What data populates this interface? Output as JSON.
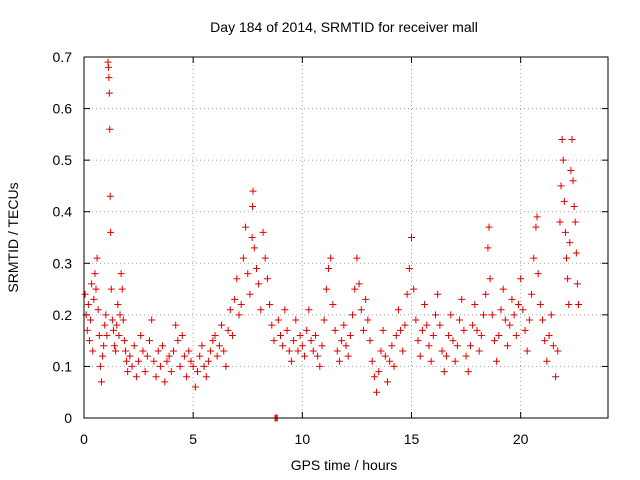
{
  "chart_data": {
    "type": "scatter",
    "title": "Day 184 of 2014, SRMTID for receiver mall",
    "xlabel": "GPS time / hours",
    "ylabel": "SRMTID / TECUs",
    "xlim": [
      0,
      24
    ],
    "ylim": [
      0,
      0.7
    ],
    "xticks": [
      0,
      5,
      10,
      15,
      20
    ],
    "xtick_labels": [
      "0",
      "5",
      "10",
      "15",
      "20"
    ],
    "yticks": [
      0,
      0.1,
      0.2,
      0.3,
      0.4,
      0.5,
      0.6,
      0.7
    ],
    "ytick_labels": [
      "0",
      "0.1",
      "0.2",
      "0.3",
      "0.4",
      "0.5",
      "0.6",
      "0.7"
    ],
    "grid": true,
    "marker": "+",
    "color": "#e00000",
    "series": [
      {
        "name": "SRMTID",
        "points": [
          [
            0.05,
            0.24
          ],
          [
            0.1,
            0.2
          ],
          [
            0.15,
            0.17
          ],
          [
            0.2,
            0.22
          ],
          [
            0.25,
            0.15
          ],
          [
            0.3,
            0.19
          ],
          [
            0.35,
            0.26
          ],
          [
            0.4,
            0.13
          ],
          [
            0.45,
            0.23
          ],
          [
            0.5,
            0.28
          ],
          [
            0.55,
            0.25
          ],
          [
            0.6,
            0.31
          ],
          [
            0.65,
            0.21
          ],
          [
            0.7,
            0.16
          ],
          [
            0.75,
            0.1
          ],
          [
            0.8,
            0.07
          ],
          [
            0.85,
            0.12
          ],
          [
            0.9,
            0.14
          ],
          [
            0.95,
            0.18
          ],
          [
            1.0,
            0.2
          ],
          [
            1.05,
            0.16
          ],
          [
            1.1,
            0.69
          ],
          [
            1.12,
            0.68
          ],
          [
            1.14,
            0.66
          ],
          [
            1.16,
            0.63
          ],
          [
            1.18,
            0.56
          ],
          [
            1.2,
            0.43
          ],
          [
            1.22,
            0.36
          ],
          [
            1.25,
            0.25
          ],
          [
            1.3,
            0.19
          ],
          [
            1.35,
            0.17
          ],
          [
            1.4,
            0.14
          ],
          [
            1.45,
            0.13
          ],
          [
            1.5,
            0.18
          ],
          [
            1.55,
            0.22
          ],
          [
            1.6,
            0.16
          ],
          [
            1.65,
            0.2
          ],
          [
            1.7,
            0.28
          ],
          [
            1.75,
            0.25
          ],
          [
            1.8,
            0.19
          ],
          [
            1.85,
            0.15
          ],
          [
            1.9,
            0.13
          ],
          [
            1.95,
            0.11
          ],
          [
            2.0,
            0.09
          ],
          [
            2.1,
            0.12
          ],
          [
            2.2,
            0.1
          ],
          [
            2.3,
            0.14
          ],
          [
            2.4,
            0.08
          ],
          [
            2.5,
            0.11
          ],
          [
            2.6,
            0.16
          ],
          [
            2.7,
            0.13
          ],
          [
            2.8,
            0.09
          ],
          [
            2.9,
            0.12
          ],
          [
            3.0,
            0.15
          ],
          [
            3.1,
            0.19
          ],
          [
            3.2,
            0.11
          ],
          [
            3.3,
            0.08
          ],
          [
            3.4,
            0.13
          ],
          [
            3.5,
            0.1
          ],
          [
            3.6,
            0.14
          ],
          [
            3.7,
            0.07
          ],
          [
            3.8,
            0.11
          ],
          [
            3.9,
            0.12
          ],
          [
            4.0,
            0.09
          ],
          [
            4.1,
            0.13
          ],
          [
            4.2,
            0.18
          ],
          [
            4.3,
            0.15
          ],
          [
            4.4,
            0.1
          ],
          [
            4.5,
            0.16
          ],
          [
            4.6,
            0.12
          ],
          [
            4.7,
            0.08
          ],
          [
            4.8,
            0.13
          ],
          [
            4.9,
            0.11
          ],
          [
            5.0,
            0.1
          ],
          [
            5.1,
            0.06
          ],
          [
            5.2,
            0.09
          ],
          [
            5.3,
            0.12
          ],
          [
            5.4,
            0.14
          ],
          [
            5.5,
            0.1
          ],
          [
            5.6,
            0.08
          ],
          [
            5.7,
            0.11
          ],
          [
            5.8,
            0.13
          ],
          [
            5.9,
            0.15
          ],
          [
            6.0,
            0.16
          ],
          [
            6.1,
            0.12
          ],
          [
            6.2,
            0.14
          ],
          [
            6.3,
            0.18
          ],
          [
            6.4,
            0.13
          ],
          [
            6.5,
            0.1
          ],
          [
            6.6,
            0.17
          ],
          [
            6.7,
            0.21
          ],
          [
            6.8,
            0.16
          ],
          [
            6.9,
            0.23
          ],
          [
            7.0,
            0.27
          ],
          [
            7.1,
            0.2
          ],
          [
            7.2,
            0.22
          ],
          [
            7.3,
            0.31
          ],
          [
            7.4,
            0.37
          ],
          [
            7.5,
            0.28
          ],
          [
            7.6,
            0.24
          ],
          [
            7.7,
            0.35
          ],
          [
            7.72,
            0.41
          ],
          [
            7.74,
            0.44
          ],
          [
            7.8,
            0.33
          ],
          [
            7.9,
            0.29
          ],
          [
            8.0,
            0.26
          ],
          [
            8.1,
            0.21
          ],
          [
            8.2,
            0.36
          ],
          [
            8.3,
            0.31
          ],
          [
            8.4,
            0.27
          ],
          [
            8.5,
            0.22
          ],
          [
            8.6,
            0.18
          ],
          [
            8.7,
            0.15
          ],
          [
            8.75,
            0.0
          ],
          [
            8.8,
            0.0
          ],
          [
            8.85,
            0.0
          ],
          [
            8.9,
            0.19
          ],
          [
            9.0,
            0.16
          ],
          [
            9.1,
            0.14
          ],
          [
            9.2,
            0.21
          ],
          [
            9.3,
            0.17
          ],
          [
            9.4,
            0.13
          ],
          [
            9.5,
            0.11
          ],
          [
            9.6,
            0.15
          ],
          [
            9.7,
            0.19
          ],
          [
            9.8,
            0.13
          ],
          [
            9.9,
            0.16
          ],
          [
            10.0,
            0.14
          ],
          [
            10.1,
            0.12
          ],
          [
            10.2,
            0.17
          ],
          [
            10.3,
            0.21
          ],
          [
            10.4,
            0.15
          ],
          [
            10.5,
            0.13
          ],
          [
            10.6,
            0.16
          ],
          [
            10.7,
            0.12
          ],
          [
            10.8,
            0.1
          ],
          [
            10.9,
            0.14
          ],
          [
            11.0,
            0.19
          ],
          [
            11.1,
            0.25
          ],
          [
            11.2,
            0.29
          ],
          [
            11.3,
            0.31
          ],
          [
            11.4,
            0.22
          ],
          [
            11.5,
            0.17
          ],
          [
            11.6,
            0.13
          ],
          [
            11.7,
            0.11
          ],
          [
            11.8,
            0.15
          ],
          [
            11.9,
            0.18
          ],
          [
            12.0,
            0.14
          ],
          [
            12.1,
            0.12
          ],
          [
            12.2,
            0.16
          ],
          [
            12.3,
            0.2
          ],
          [
            12.4,
            0.25
          ],
          [
            12.5,
            0.31
          ],
          [
            12.6,
            0.26
          ],
          [
            12.7,
            0.21
          ],
          [
            12.8,
            0.17
          ],
          [
            12.9,
            0.23
          ],
          [
            13.0,
            0.19
          ],
          [
            13.1,
            0.15
          ],
          [
            13.2,
            0.11
          ],
          [
            13.3,
            0.08
          ],
          [
            13.4,
            0.05
          ],
          [
            13.5,
            0.09
          ],
          [
            13.6,
            0.13
          ],
          [
            13.7,
            0.17
          ],
          [
            13.8,
            0.12
          ],
          [
            13.9,
            0.07
          ],
          [
            14.0,
            0.11
          ],
          [
            14.1,
            0.14
          ],
          [
            14.2,
            0.1
          ],
          [
            14.3,
            0.16
          ],
          [
            14.4,
            0.21
          ],
          [
            14.5,
            0.17
          ],
          [
            14.6,
            0.13
          ],
          [
            14.7,
            0.18
          ],
          [
            14.8,
            0.24
          ],
          [
            14.9,
            0.29
          ],
          [
            15.0,
            0.35
          ],
          [
            15.1,
            0.25
          ],
          [
            15.2,
            0.19
          ],
          [
            15.3,
            0.15
          ],
          [
            15.4,
            0.12
          ],
          [
            15.5,
            0.17
          ],
          [
            15.6,
            0.22
          ],
          [
            15.7,
            0.18
          ],
          [
            15.8,
            0.14
          ],
          [
            15.9,
            0.11
          ],
          [
            16.0,
            0.16
          ],
          [
            16.1,
            0.2
          ],
          [
            16.2,
            0.24
          ],
          [
            16.3,
            0.18
          ],
          [
            16.4,
            0.13
          ],
          [
            16.5,
            0.09
          ],
          [
            16.6,
            0.12
          ],
          [
            16.7,
            0.16
          ],
          [
            16.8,
            0.2
          ],
          [
            16.9,
            0.15
          ],
          [
            17.0,
            0.11
          ],
          [
            17.1,
            0.14
          ],
          [
            17.2,
            0.19
          ],
          [
            17.3,
            0.23
          ],
          [
            17.4,
            0.17
          ],
          [
            17.5,
            0.12
          ],
          [
            17.6,
            0.09
          ],
          [
            17.7,
            0.14
          ],
          [
            17.8,
            0.18
          ],
          [
            17.9,
            0.22
          ],
          [
            18.0,
            0.17
          ],
          [
            18.1,
            0.13
          ],
          [
            18.2,
            0.16
          ],
          [
            18.3,
            0.2
          ],
          [
            18.4,
            0.24
          ],
          [
            18.5,
            0.33
          ],
          [
            18.55,
            0.37
          ],
          [
            18.6,
            0.27
          ],
          [
            18.7,
            0.2
          ],
          [
            18.8,
            0.15
          ],
          [
            18.9,
            0.11
          ],
          [
            19.0,
            0.16
          ],
          [
            19.1,
            0.21
          ],
          [
            19.2,
            0.25
          ],
          [
            19.3,
            0.19
          ],
          [
            19.4,
            0.14
          ],
          [
            19.5,
            0.18
          ],
          [
            19.6,
            0.23
          ],
          [
            19.7,
            0.2
          ],
          [
            19.8,
            0.16
          ],
          [
            19.9,
            0.22
          ],
          [
            20.0,
            0.27
          ],
          [
            20.1,
            0.21
          ],
          [
            20.2,
            0.17
          ],
          [
            20.3,
            0.13
          ],
          [
            20.4,
            0.19
          ],
          [
            20.5,
            0.24
          ],
          [
            20.6,
            0.31
          ],
          [
            20.7,
            0.37
          ],
          [
            20.75,
            0.39
          ],
          [
            20.8,
            0.28
          ],
          [
            20.9,
            0.22
          ],
          [
            21.0,
            0.19
          ],
          [
            21.1,
            0.15
          ],
          [
            21.2,
            0.11
          ],
          [
            21.3,
            0.16
          ],
          [
            21.4,
            0.2
          ],
          [
            21.5,
            0.14
          ],
          [
            21.6,
            0.08
          ],
          [
            21.7,
            0.13
          ],
          [
            21.8,
            0.38
          ],
          [
            21.85,
            0.45
          ],
          [
            21.9,
            0.54
          ],
          [
            21.95,
            0.5
          ],
          [
            22.0,
            0.42
          ],
          [
            22.05,
            0.36
          ],
          [
            22.1,
            0.31
          ],
          [
            22.15,
            0.27
          ],
          [
            22.2,
            0.22
          ],
          [
            22.25,
            0.34
          ],
          [
            22.3,
            0.48
          ],
          [
            22.35,
            0.54
          ],
          [
            22.4,
            0.46
          ],
          [
            22.45,
            0.41
          ],
          [
            22.5,
            0.38
          ],
          [
            22.55,
            0.32
          ],
          [
            22.6,
            0.26
          ],
          [
            22.65,
            0.22
          ]
        ]
      }
    ]
  }
}
